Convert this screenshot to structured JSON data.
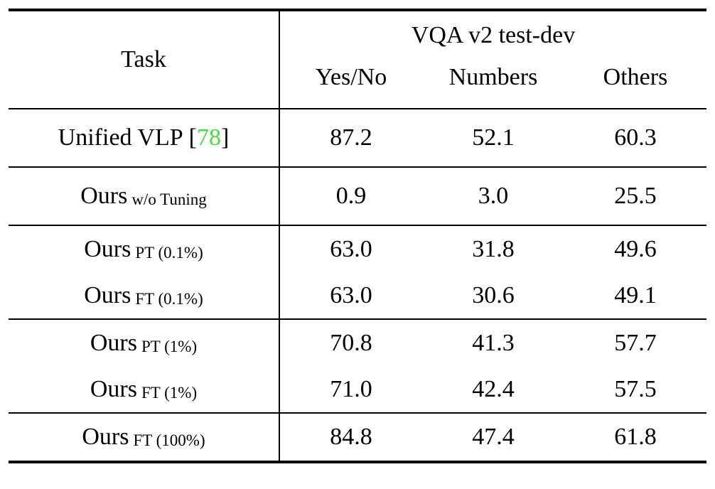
{
  "colors": {
    "citation_green": "#44dd44",
    "text": "#000000",
    "background": "#ffffff"
  },
  "table": {
    "header": {
      "task": "Task",
      "group_title": "VQA v2 test-dev",
      "columns": [
        "Yes/No",
        "Numbers",
        "Others"
      ]
    },
    "rows": [
      {
        "task": "Unified VLP",
        "cite_open": "[",
        "cite_num": "78",
        "cite_close": "]",
        "values": [
          "87.2",
          "52.1",
          "60.3"
        ]
      },
      {
        "task": "Ours",
        "sub": "w/o Tuning",
        "values": [
          "0.9",
          "3.0",
          "25.5"
        ]
      },
      {
        "task": "Ours",
        "sub": "PT (0.1%)",
        "values": [
          "63.0",
          "31.8",
          "49.6"
        ]
      },
      {
        "task": "Ours",
        "sub": "FT (0.1%)",
        "values": [
          "63.0",
          "30.6",
          "49.1"
        ]
      },
      {
        "task": "Ours",
        "sub": "PT (1%)",
        "values": [
          "70.8",
          "41.3",
          "57.7"
        ]
      },
      {
        "task": "Ours",
        "sub": "FT (1%)",
        "values": [
          "71.0",
          "42.4",
          "57.5"
        ]
      },
      {
        "task": "Ours",
        "sub": "FT (100%)",
        "values": [
          "84.8",
          "47.4",
          "61.8"
        ]
      }
    ]
  }
}
